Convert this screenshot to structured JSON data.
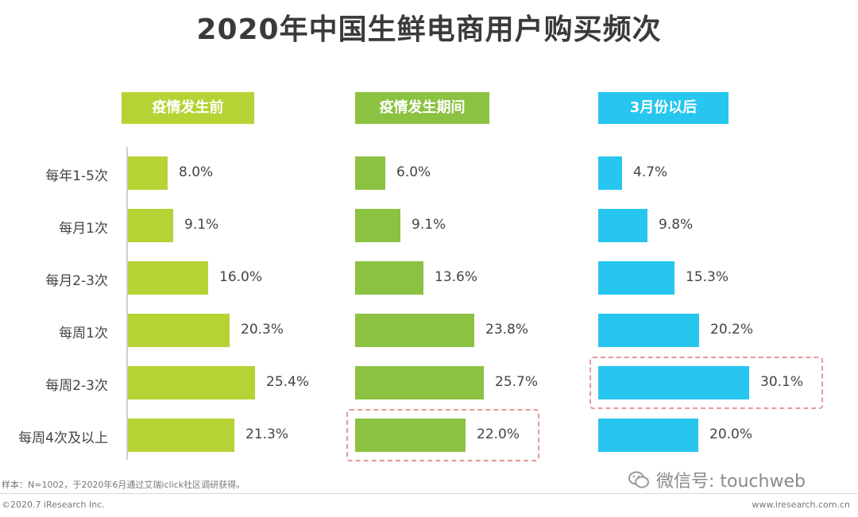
{
  "title": "2020年中国生鲜电商用户购买频次",
  "colors": {
    "green_light": "#b5d334",
    "green_mid": "#8bc242",
    "blue": "#27c6ef",
    "highlight": "#e59a9a"
  },
  "categories": [
    "每年1-5次",
    "每月1次",
    "每月2-3次",
    "每周1次",
    "每周2-3次",
    "每周4次及以上"
  ],
  "chart_data": {
    "type": "bar",
    "orientation": "horizontal",
    "title": "2020年中国生鲜电商用户购买频次",
    "categories": [
      "每年1-5次",
      "每月1次",
      "每月2-3次",
      "每周1次",
      "每周2-3次",
      "每周4次及以上"
    ],
    "series": [
      {
        "name": "疫情发生前",
        "values": [
          8.0,
          9.1,
          16.0,
          20.3,
          25.4,
          21.3
        ],
        "labels": [
          "8.0%",
          "9.1%",
          "16.0%",
          "20.3%",
          "25.4%",
          "21.3%"
        ],
        "color": "#b5d334",
        "highlight_index": -1
      },
      {
        "name": "疫情发生期间",
        "values": [
          6.0,
          9.1,
          13.6,
          23.8,
          25.7,
          22.0
        ],
        "labels": [
          "6.0%",
          "9.1%",
          "13.6%",
          "23.8%",
          "25.7%",
          "22.0%"
        ],
        "color": "#8bc242",
        "highlight_index": 5
      },
      {
        "name": "3月份以后",
        "values": [
          4.7,
          9.8,
          15.3,
          20.2,
          30.1,
          20.0
        ],
        "labels": [
          "4.7%",
          "9.8%",
          "15.3%",
          "20.2%",
          "30.1%",
          "20.0%"
        ],
        "color": "#27c6ef",
        "highlight_index": 4
      }
    ],
    "unit": "%",
    "grid": false,
    "legend": "panel headers"
  },
  "footer": {
    "note": "样本：N=1002，于2020年6月通过艾瑞iclick社区调研获得。",
    "copyright": "©2020.7 iResearch Inc.",
    "website": "www.iresearch.com.cn",
    "watermark": "微信号: touchweb"
  }
}
